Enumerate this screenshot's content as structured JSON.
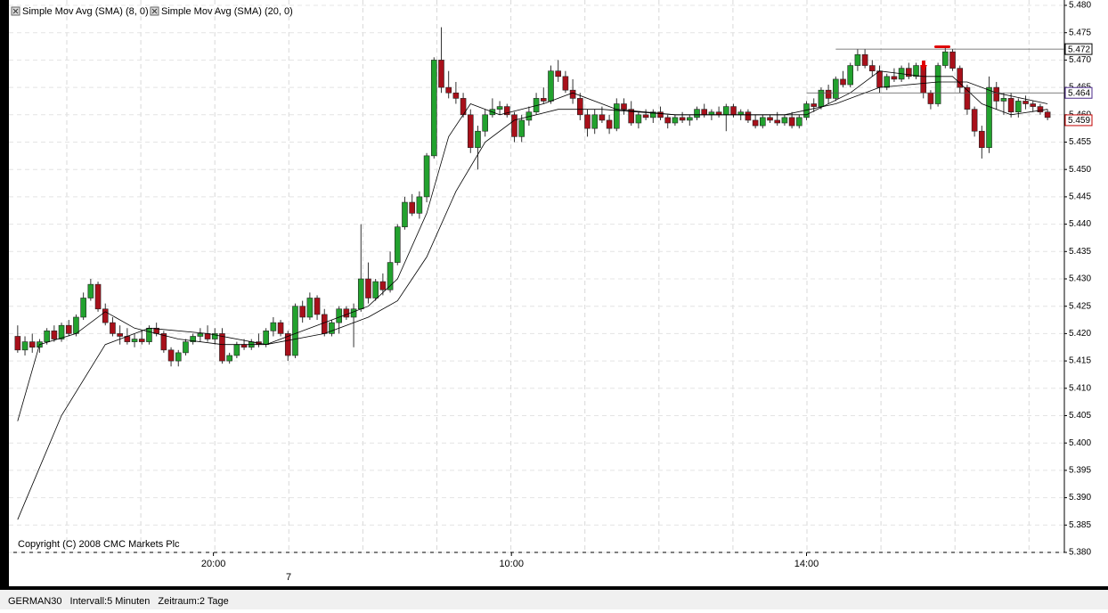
{
  "chart_data": {
    "type": "candlestick",
    "legend": [
      "Simple Mov Avg (SMA) (8, 0)",
      "Simple Mov Avg (SMA) (20, 0)"
    ],
    "copyright": "Copyright (C) 2008 CMC Markets Plc",
    "up_color": "#22a22e",
    "down_color": "#a8101a",
    "ylim": [
      5.38,
      5.48
    ],
    "yticks": [
      {
        "value": 5.38,
        "label": "5.380"
      },
      {
        "value": 5.385,
        "label": "5.385"
      },
      {
        "value": 5.39,
        "label": "5.390"
      },
      {
        "value": 5.395,
        "label": "5.395"
      },
      {
        "value": 5.4,
        "label": "5.400"
      },
      {
        "value": 5.405,
        "label": "5.405"
      },
      {
        "value": 5.41,
        "label": "5.410"
      },
      {
        "value": 5.415,
        "label": "5.415"
      },
      {
        "value": 5.42,
        "label": "5.420"
      },
      {
        "value": 5.425,
        "label": "5.425"
      },
      {
        "value": 5.43,
        "label": "5.430"
      },
      {
        "value": 5.435,
        "label": "5.435"
      },
      {
        "value": 5.44,
        "label": "5.440"
      },
      {
        "value": 5.445,
        "label": "5.445"
      },
      {
        "value": 5.45,
        "label": "5.450"
      },
      {
        "value": 5.455,
        "label": "5.455"
      },
      {
        "value": 5.46,
        "label": "5.460"
      },
      {
        "value": 5.465,
        "label": "5.465"
      },
      {
        "value": 5.47,
        "label": "5.470"
      },
      {
        "value": 5.475,
        "label": "5.475"
      },
      {
        "value": 5.48,
        "label": "5.480"
      }
    ],
    "xlim": [
      -1.2,
      143.3
    ],
    "xticks": [
      {
        "value": 26.8,
        "label": "20:00"
      },
      {
        "value": 67.6,
        "label": "10:00"
      },
      {
        "value": 108,
        "label": "14:00"
      }
    ],
    "day_ticks": [
      {
        "value": 37.1,
        "label": "7"
      }
    ],
    "levels": [
      {
        "value": 5.472,
        "label": "5.472",
        "color": "#000000",
        "from": 112
      },
      {
        "value": 5.464,
        "label": "5.464",
        "color": "#4b2a8a",
        "from": 108
      },
      {
        "value": 5.459,
        "label": "5.459",
        "color": "#c00000"
      }
    ],
    "ohlc": [
      [
        5.4195,
        5.4215,
        5.4165,
        5.417
      ],
      [
        5.417,
        5.4195,
        5.416,
        5.4185
      ],
      [
        5.4185,
        5.42,
        5.4165,
        5.4175
      ],
      [
        5.4175,
        5.419,
        5.4165,
        5.4185
      ],
      [
        5.4185,
        5.421,
        5.418,
        5.4205
      ],
      [
        5.4205,
        5.4215,
        5.4185,
        5.419
      ],
      [
        5.419,
        5.422,
        5.4185,
        5.4215
      ],
      [
        5.4215,
        5.4225,
        5.4195,
        5.42
      ],
      [
        5.42,
        5.4235,
        5.4195,
        5.423
      ],
      [
        5.423,
        5.4275,
        5.4225,
        5.4265
      ],
      [
        5.4265,
        5.43,
        5.426,
        5.429
      ],
      [
        5.429,
        5.4295,
        5.424,
        5.4245
      ],
      [
        5.4245,
        5.4255,
        5.4215,
        5.422
      ],
      [
        5.422,
        5.423,
        5.4195,
        5.42
      ],
      [
        5.42,
        5.4215,
        5.418,
        5.4195
      ],
      [
        5.4195,
        5.421,
        5.418,
        5.4185
      ],
      [
        5.4185,
        5.42,
        5.4175,
        5.419
      ],
      [
        5.419,
        5.4205,
        5.418,
        5.4185
      ],
      [
        5.4185,
        5.4215,
        5.418,
        5.421
      ],
      [
        5.421,
        5.422,
        5.4195,
        5.42
      ],
      [
        5.42,
        5.4205,
        5.4165,
        5.417
      ],
      [
        5.417,
        5.4175,
        5.414,
        5.415
      ],
      [
        5.415,
        5.417,
        5.414,
        5.4165
      ],
      [
        5.4165,
        5.419,
        5.416,
        5.4185
      ],
      [
        5.4185,
        5.42,
        5.418,
        5.4195
      ],
      [
        5.4195,
        5.421,
        5.4185,
        5.42
      ],
      [
        5.42,
        5.4215,
        5.4185,
        5.419
      ],
      [
        5.419,
        5.421,
        5.418,
        5.42
      ],
      [
        5.42,
        5.421,
        5.4145,
        5.415
      ],
      [
        5.415,
        5.4165,
        5.4145,
        5.416
      ],
      [
        5.416,
        5.4185,
        5.4155,
        5.418
      ],
      [
        5.418,
        5.419,
        5.417,
        5.4175
      ],
      [
        5.4175,
        5.419,
        5.417,
        5.4185
      ],
      [
        5.4185,
        5.42,
        5.4175,
        5.418
      ],
      [
        5.418,
        5.421,
        5.4175,
        5.4205
      ],
      [
        5.4205,
        5.423,
        5.4195,
        5.422
      ],
      [
        5.422,
        5.4225,
        5.4195,
        5.42
      ],
      [
        5.42,
        5.4205,
        5.415,
        5.416
      ],
      [
        5.416,
        5.4255,
        5.4155,
        5.425
      ],
      [
        5.425,
        5.426,
        5.422,
        5.423
      ],
      [
        5.423,
        5.4275,
        5.4225,
        5.4265
      ],
      [
        5.4265,
        5.427,
        5.4225,
        5.4235
      ],
      [
        5.4235,
        5.4245,
        5.4195,
        5.42
      ],
      [
        5.42,
        5.4225,
        5.4195,
        5.422
      ],
      [
        5.422,
        5.425,
        5.42,
        5.4245
      ],
      [
        5.4245,
        5.425,
        5.4225,
        5.423
      ],
      [
        5.423,
        5.4255,
        5.4175,
        5.4245
      ],
      [
        5.4245,
        5.44,
        5.424,
        5.43
      ],
      [
        5.43,
        5.433,
        5.4255,
        5.4265
      ],
      [
        5.4265,
        5.43,
        5.426,
        5.4295
      ],
      [
        5.4295,
        5.431,
        5.427,
        5.428
      ],
      [
        5.428,
        5.435,
        5.4275,
        5.433
      ],
      [
        5.433,
        5.44,
        5.4325,
        5.4395
      ],
      [
        5.4395,
        5.445,
        5.439,
        5.444
      ],
      [
        5.444,
        5.4455,
        5.4415,
        5.442
      ],
      [
        5.442,
        5.446,
        5.441,
        5.445
      ],
      [
        5.445,
        5.453,
        5.444,
        5.4525
      ],
      [
        5.4525,
        5.4705,
        5.452,
        5.47
      ],
      [
        5.47,
        5.476,
        5.464,
        5.465
      ],
      [
        5.465,
        5.468,
        5.463,
        5.464
      ],
      [
        5.464,
        5.466,
        5.462,
        5.463
      ],
      [
        5.463,
        5.464,
        5.4595,
        5.46
      ],
      [
        5.46,
        5.461,
        5.453,
        5.454
      ],
      [
        5.454,
        5.458,
        5.45,
        5.457
      ],
      [
        5.457,
        5.461,
        5.456,
        5.46
      ],
      [
        5.46,
        5.463,
        5.4595,
        5.461
      ],
      [
        5.461,
        5.4625,
        5.46,
        5.4615
      ],
      [
        5.4615,
        5.462,
        5.4595,
        5.46
      ],
      [
        5.46,
        5.4605,
        5.455,
        5.456
      ],
      [
        5.456,
        5.46,
        5.455,
        5.459
      ],
      [
        5.459,
        5.4615,
        5.458,
        5.4605
      ],
      [
        5.4605,
        5.464,
        5.46,
        5.463
      ],
      [
        5.463,
        5.465,
        5.462,
        5.4625
      ],
      [
        5.4625,
        5.469,
        5.462,
        5.468
      ],
      [
        5.468,
        5.47,
        5.466,
        5.467
      ],
      [
        5.467,
        5.468,
        5.464,
        5.4645
      ],
      [
        5.4645,
        5.4665,
        5.462,
        5.463
      ],
      [
        5.463,
        5.464,
        5.459,
        5.46
      ],
      [
        5.46,
        5.461,
        5.456,
        5.4575
      ],
      [
        5.4575,
        5.461,
        5.4565,
        5.46
      ],
      [
        5.46,
        5.4615,
        5.4585,
        5.459
      ],
      [
        5.459,
        5.46,
        5.4565,
        5.4575
      ],
      [
        5.4575,
        5.463,
        5.457,
        5.462
      ],
      [
        5.462,
        5.463,
        5.46,
        5.461
      ],
      [
        5.461,
        5.4625,
        5.458,
        5.4585
      ],
      [
        5.4585,
        5.4605,
        5.4575,
        5.46
      ],
      [
        5.46,
        5.461,
        5.459,
        5.4595
      ],
      [
        5.4595,
        5.461,
        5.4585,
        5.4605
      ],
      [
        5.4605,
        5.4615,
        5.459,
        5.4595
      ],
      [
        5.4595,
        5.46,
        5.4575,
        5.4585
      ],
      [
        5.4585,
        5.46,
        5.458,
        5.4595
      ],
      [
        5.4595,
        5.4605,
        5.4585,
        5.459
      ],
      [
        5.459,
        5.46,
        5.458,
        5.4595
      ],
      [
        5.4595,
        5.4615,
        5.459,
        5.461
      ],
      [
        5.461,
        5.462,
        5.4595,
        5.46
      ],
      [
        5.46,
        5.461,
        5.459,
        5.4605
      ],
      [
        5.4605,
        5.4615,
        5.4595,
        5.46
      ],
      [
        5.46,
        5.462,
        5.457,
        5.4615
      ],
      [
        5.4615,
        5.462,
        5.4595,
        5.46
      ],
      [
        5.46,
        5.461,
        5.459,
        5.4605
      ],
      [
        5.4605,
        5.461,
        5.4585,
        5.459
      ],
      [
        5.459,
        5.46,
        5.4575,
        5.458
      ],
      [
        5.458,
        5.46,
        5.4575,
        5.4595
      ],
      [
        5.4595,
        5.46,
        5.4585,
        5.459
      ],
      [
        5.459,
        5.4605,
        5.458,
        5.4585
      ],
      [
        5.4585,
        5.46,
        5.458,
        5.4595
      ],
      [
        5.4595,
        5.4605,
        5.4575,
        5.458
      ],
      [
        5.458,
        5.46,
        5.4575,
        5.4595
      ],
      [
        5.4595,
        5.4625,
        5.459,
        5.462
      ],
      [
        5.462,
        5.463,
        5.4605,
        5.4615
      ],
      [
        5.4615,
        5.465,
        5.461,
        5.4645
      ],
      [
        5.4645,
        5.4655,
        5.462,
        5.463
      ],
      [
        5.463,
        5.467,
        5.4625,
        5.4665
      ],
      [
        5.4665,
        5.468,
        5.465,
        5.4655
      ],
      [
        5.4655,
        5.4695,
        5.465,
        5.469
      ],
      [
        5.469,
        5.472,
        5.468,
        5.471
      ],
      [
        5.471,
        5.472,
        5.4685,
        5.469
      ],
      [
        5.469,
        5.47,
        5.467,
        5.468
      ],
      [
        5.468,
        5.469,
        5.464,
        5.465
      ],
      [
        5.465,
        5.4675,
        5.4645,
        5.467
      ],
      [
        5.467,
        5.4685,
        5.466,
        5.4665
      ],
      [
        5.4665,
        5.469,
        5.466,
        5.4685
      ],
      [
        5.4685,
        5.4695,
        5.4665,
        5.467
      ],
      [
        5.467,
        5.4695,
        5.4665,
        5.469
      ],
      [
        5.469,
        5.4695,
        5.463,
        5.464
      ],
      [
        5.464,
        5.4645,
        5.461,
        5.462
      ],
      [
        5.462,
        5.4695,
        5.4615,
        5.469
      ],
      [
        5.469,
        5.4725,
        5.4685,
        5.4715
      ],
      [
        5.4715,
        5.472,
        5.468,
        5.4685
      ],
      [
        5.4685,
        5.469,
        5.464,
        5.465
      ],
      [
        5.465,
        5.4655,
        5.46,
        5.461
      ],
      [
        5.461,
        5.4615,
        5.456,
        5.457
      ],
      [
        5.457,
        5.458,
        5.452,
        5.454
      ],
      [
        5.454,
        5.467,
        5.453,
        5.465
      ],
      [
        5.465,
        5.466,
        5.461,
        5.4625
      ],
      [
        5.4625,
        5.464,
        5.46,
        5.463
      ],
      [
        5.463,
        5.464,
        5.4595,
        5.4605
      ],
      [
        5.4605,
        5.463,
        5.4595,
        5.4625
      ],
      [
        5.4625,
        5.4635,
        5.461,
        5.462
      ],
      [
        5.462,
        5.4625,
        5.4605,
        5.4615
      ],
      [
        5.4615,
        5.462,
        5.46,
        5.4605
      ],
      [
        5.4605,
        5.461,
        5.459,
        5.4595
      ]
    ],
    "series": [
      {
        "name": "Simple Mov Avg (SMA) (8, 0)",
        "color": "#000000",
        "x": [
          0,
          3,
          8,
          12,
          16,
          22,
          28,
          34,
          38,
          44,
          48,
          52,
          56,
          59,
          62,
          66,
          72,
          76,
          82,
          90,
          100,
          108,
          114,
          118,
          124,
          128,
          132,
          136,
          141
        ],
        "values": [
          5.404,
          5.418,
          5.42,
          5.424,
          5.421,
          5.419,
          5.418,
          5.418,
          5.42,
          5.423,
          5.425,
          5.43,
          5.442,
          5.456,
          5.462,
          5.46,
          5.462,
          5.464,
          5.461,
          5.46,
          5.46,
          5.46,
          5.464,
          5.468,
          5.467,
          5.467,
          5.462,
          5.46,
          5.461
        ]
      },
      {
        "name": "Simple Mov Avg (SMA) (20, 0)",
        "color": "#000000",
        "x": [
          0,
          6,
          12,
          18,
          26,
          34,
          42,
          48,
          52,
          56,
          60,
          64,
          68,
          74,
          80,
          90,
          105,
          112,
          118,
          126,
          130,
          134,
          141
        ],
        "values": [
          5.386,
          5.405,
          5.418,
          5.421,
          5.42,
          5.418,
          5.42,
          5.423,
          5.426,
          5.434,
          5.446,
          5.455,
          5.459,
          5.461,
          5.461,
          5.46,
          5.46,
          5.462,
          5.465,
          5.466,
          5.466,
          5.464,
          5.462
        ]
      }
    ],
    "footer": [
      "GERMAN30",
      "Intervall:5 Minuten",
      "Zeitraum:2 Tage"
    ]
  }
}
